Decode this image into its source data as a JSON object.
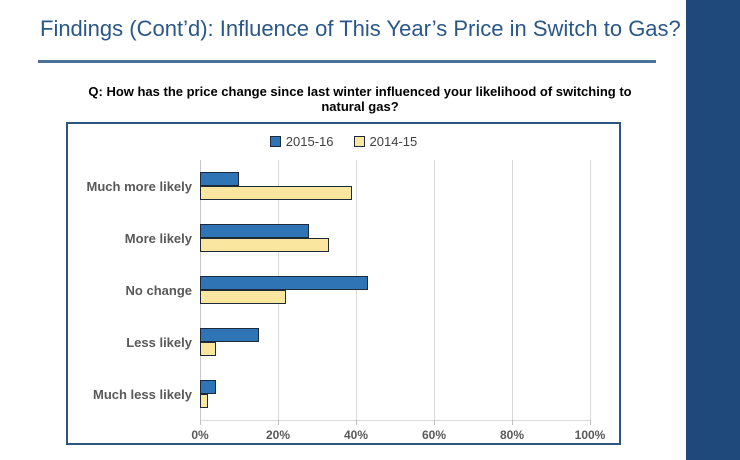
{
  "slide": {
    "title": "Findings (Cont’d): Influence of This Year’s Price in Switch to Gas?",
    "question": "Q: How has the price change since last winter influenced your likelihood of switching to natural gas?"
  },
  "colors": {
    "title_text": "#2A5789",
    "title_rule": "#4C7299",
    "accent_bar": "#20497B",
    "chart_border": "#2E5580",
    "series_2015_16": "#2F75B5",
    "series_2014_15": "#FAE69E",
    "bar_outline": "#1F2A38",
    "gridline": "#D9D9D9",
    "category_label": "#595959"
  },
  "chart_data": {
    "type": "bar",
    "orientation": "horizontal",
    "title": "",
    "categories": [
      "Much more likely",
      "More likely",
      "No change",
      "Less likely",
      "Much less likely"
    ],
    "series": [
      {
        "name": "2015-16",
        "color": "#2F75B5",
        "values": [
          10,
          28,
          43,
          15,
          4
        ]
      },
      {
        "name": "2014-15",
        "color": "#FAE69E",
        "values": [
          39,
          33,
          22,
          4,
          2
        ]
      }
    ],
    "x_tick_labels": [
      "0%",
      "20%",
      "40%",
      "60%",
      "80%",
      "100%"
    ],
    "x_tick_values": [
      0,
      20,
      40,
      60,
      80,
      100
    ],
    "xlim": [
      0,
      100
    ],
    "grid": true,
    "legend_position": "top-center"
  }
}
